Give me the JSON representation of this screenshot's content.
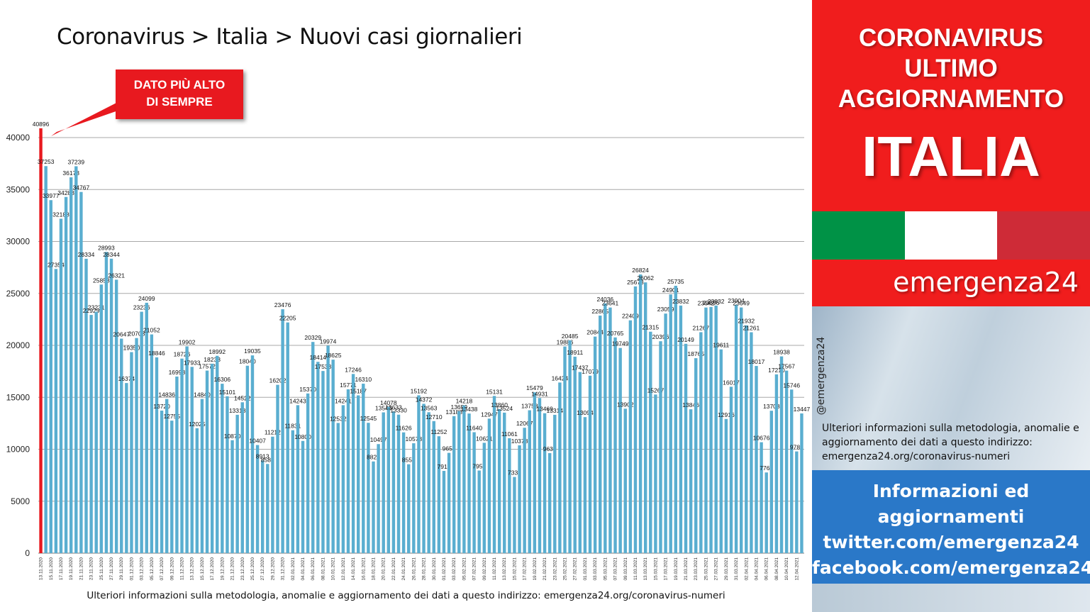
{
  "chart_title": "Coronavirus > Italia > Nuovi casi giornalieri",
  "callout": {
    "line1": "DATO PIÙ ALTO",
    "line2": "DI SEMPRE"
  },
  "footer_text": "Ulteriori informazioni sulla metodologia, anomalie e aggiornamento dei dati a questo indirizzo: emergenza24.org/coronavirus-numeri",
  "colors": {
    "bar": "#5aaed0",
    "highlight_bar": "#e8191f",
    "sidebar_red": "#f01d1d",
    "sidebar_blue": "#2a78c8",
    "flag_green": "#009246",
    "flag_white": "#ffffff",
    "flag_red": "#ce2b37"
  },
  "sidebar": {
    "header_lines": [
      "CORONAVIRUS",
      "ULTIMO",
      "AGGIORNAMENTO"
    ],
    "header_big": "ITALIA",
    "brand": "emergenza24",
    "handle": "@emergenza24",
    "method_text": "Ulteriori informazioni sulla metodologia, anomalie e aggiornamento dei dati a questo indirizzo: emergenza24.org/coronavirus-numeri",
    "info_lines": [
      "Informazioni ed",
      "aggiornamenti",
      "twitter.com/emergenza24",
      "facebook.com/emergenza24"
    ]
  },
  "chart_data": {
    "type": "bar",
    "title": "Coronavirus > Italia > Nuovi casi giornalieri",
    "ylim": [
      0,
      40000
    ],
    "yticks": [
      0,
      5000,
      10000,
      15000,
      20000,
      25000,
      30000,
      35000,
      40000
    ],
    "grid": true,
    "highlight_index": 0,
    "values": [
      40896,
      37253,
      33977,
      27354,
      32188,
      34283,
      36173,
      37239,
      34767,
      28334,
      22929,
      23231,
      25853,
      28993,
      28344,
      26321,
      20647,
      16374,
      19350,
      20703,
      23236,
      24099,
      21052,
      18846,
      13720,
      14836,
      12755,
      16998,
      18726,
      19902,
      17933,
      12025,
      14840,
      17572,
      18233,
      18992,
      16306,
      15101,
      10870,
      13318,
      14522,
      18040,
      19035,
      10407,
      8913,
      8583,
      11212,
      16202,
      23476,
      22205,
      11831,
      14243,
      10800,
      15370,
      20329,
      18414,
      17533,
      19974,
      18625,
      12532,
      14241,
      15771,
      17246,
      15187,
      16310,
      12545,
      8824,
      10497,
      13549,
      14078,
      13633,
      13330,
      11626,
      8555,
      10578,
      15192,
      14372,
      13563,
      12710,
      11252,
      7916,
      9653,
      13188,
      13659,
      14218,
      13438,
      11640,
      7952,
      10621,
      12947,
      15131,
      13860,
      13524,
      11061,
      7333,
      10378,
      12067,
      13753,
      15479,
      14931,
      13469,
      9630,
      13314,
      16424,
      19886,
      20485,
      18911,
      17437,
      13094,
      17079,
      20844,
      22865,
      24036,
      23641,
      20765,
      19749,
      13902,
      22409,
      25673,
      26824,
      26062,
      21315,
      15267,
      20396,
      23059,
      24901,
      25735,
      23832,
      20149,
      13846,
      18765,
      21267,
      23642,
      23696,
      23832,
      19611,
      12916,
      16017,
      23904,
      23649,
      21932,
      21261,
      18017,
      10676,
      7767,
      13708,
      17210,
      18938,
      17567,
      15746,
      9789,
      13447
    ],
    "date_labels": [
      "13.11.2020",
      "15.11.2020",
      "17.11.2020",
      "19.11.2020",
      "21.11.2020",
      "23.11.2020",
      "25.11.2020",
      "27.11.2020",
      "29.11.2020",
      "01.12.2020",
      "03.12.2020",
      "05.12.2020",
      "07.12.2020",
      "09.12.2020",
      "11.12.2020",
      "13.12.2020",
      "15.12.2020",
      "17.12.2020",
      "19.12.2020",
      "21.12.2020",
      "23.12.2020",
      "25.12.2020",
      "27.12.2020",
      "29.12.2020",
      "31.12.2020",
      "02.01.2021",
      "04.01.2021",
      "06.01.2021",
      "08.01.2021",
      "10.01.2021",
      "12.01.2021",
      "14.01.2021",
      "16.01.2021",
      "18.01.2021",
      "20.01.2021",
      "22.01.2021",
      "24.01.2021",
      "26.01.2021",
      "28.01.2021",
      "30.01.2021",
      "01.02.2021",
      "03.02.2021",
      "05.02.2021",
      "07.02.2021",
      "09.02.2021",
      "11.02.2021",
      "13.02.2021",
      "15.02.2021",
      "17.02.2021",
      "19.02.2021",
      "21.02.2021",
      "23.02.2021",
      "25.02.2021",
      "27.02.2021",
      "01.03.2021",
      "03.03.2021",
      "05.03.2021",
      "07.03.2021",
      "09.03.2021",
      "11.03.2021",
      "13.03.2021",
      "15.03.2021",
      "17.03.2021",
      "19.03.2021",
      "21.03.2021",
      "23.03.2021",
      "25.03.2021",
      "27.03.2021",
      "29.03.2021",
      "31.03.2021",
      "02.04.2021",
      "04.04.2021",
      "06.04.2021",
      "08.04.2021",
      "10.04.2021",
      "12.04.2021"
    ]
  }
}
